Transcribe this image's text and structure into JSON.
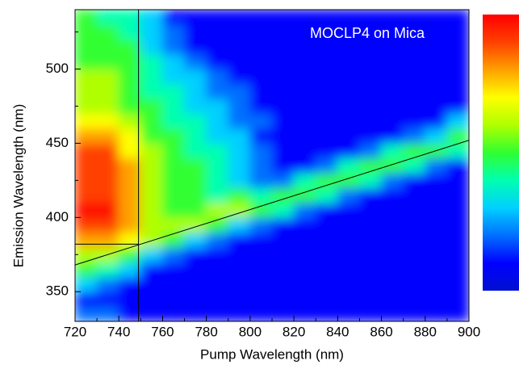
{
  "chart_data": {
    "type": "heatmap",
    "title": "MOCLP4 on Mica",
    "x_label": "Pump Wavelength (nm)",
    "y_label": "Emission Wavelength (nm)",
    "xlim": [
      720,
      900
    ],
    "ylim": [
      330,
      540
    ],
    "xticks": [
      720,
      740,
      760,
      780,
      800,
      820,
      840,
      860,
      880,
      900
    ],
    "yticks": [
      350,
      400,
      450,
      500
    ],
    "xminorticks": [
      730,
      750,
      770,
      790,
      810,
      830,
      850,
      870,
      890
    ],
    "yminorticks": [
      375,
      425,
      475,
      525
    ],
    "x": [
      725,
      735,
      745,
      755,
      765,
      775,
      785,
      795,
      805,
      815,
      825,
      835,
      845,
      855,
      865,
      875,
      885,
      895
    ],
    "y": [
      335,
      345,
      355,
      365,
      375,
      385,
      395,
      405,
      415,
      425,
      435,
      445,
      455,
      465,
      475,
      485,
      495,
      505,
      515,
      525,
      535
    ],
    "z": [
      [
        2,
        1,
        3,
        5,
        6,
        8,
        9,
        10,
        9,
        9,
        9,
        9,
        8,
        7,
        6,
        6,
        6,
        5,
        5,
        5,
        5
      ],
      [
        2,
        1,
        2,
        4,
        6,
        8,
        9,
        10,
        9,
        9,
        9,
        9,
        8,
        7,
        6,
        6,
        6,
        5,
        5,
        5,
        4
      ],
      [
        1,
        1,
        1,
        3,
        5,
        7,
        8,
        8,
        8,
        8,
        8,
        7,
        7,
        6,
        5,
        5,
        5,
        5,
        5,
        4,
        4
      ],
      [
        1,
        1,
        1,
        1,
        3,
        6,
        6,
        6,
        6,
        6,
        6,
        6,
        5,
        5,
        5,
        4,
        4,
        4,
        3,
        3,
        3
      ],
      [
        1,
        1,
        1,
        1,
        2,
        5,
        6,
        5,
        5,
        5,
        5,
        5,
        5,
        4,
        4,
        4,
        3,
        3,
        2,
        2,
        1
      ],
      [
        1,
        1,
        1,
        1,
        1,
        3,
        6,
        5,
        5,
        5,
        5,
        4,
        4,
        4,
        3,
        3,
        3,
        2,
        1,
        1,
        1
      ],
      [
        1,
        1,
        1,
        1,
        1,
        2,
        5,
        6,
        4,
        4,
        4,
        4,
        3,
        3,
        3,
        2,
        2,
        1,
        1,
        1,
        1
      ],
      [
        1,
        1,
        1,
        1,
        1,
        1,
        3,
        6,
        5,
        3,
        3,
        3,
        3,
        2,
        2,
        2,
        1,
        1,
        1,
        1,
        1
      ],
      [
        1,
        1,
        1,
        1,
        1,
        1,
        2,
        5,
        4,
        2,
        2,
        2,
        1,
        2,
        1,
        1,
        1,
        1,
        1,
        1,
        1
      ],
      [
        1,
        1,
        1,
        1,
        1,
        1,
        1,
        4,
        5,
        2,
        1,
        1,
        1,
        1,
        1,
        1,
        1,
        1,
        1,
        1,
        1
      ],
      [
        1,
        1,
        1,
        1,
        1,
        1,
        1,
        2,
        5,
        4,
        1,
        1,
        1,
        1,
        1,
        1,
        1,
        1,
        1,
        1,
        1
      ],
      [
        1,
        1,
        1,
        1,
        1,
        1,
        1,
        1,
        4,
        5,
        2,
        1,
        1,
        1,
        1,
        1,
        1,
        1,
        1,
        1,
        1
      ],
      [
        1,
        1,
        1,
        1,
        1,
        1,
        1,
        1,
        2,
        5,
        4,
        1,
        1,
        1,
        1,
        1,
        1,
        1,
        1,
        1,
        1
      ],
      [
        1,
        1,
        1,
        1,
        1,
        1,
        1,
        1,
        1,
        4,
        5,
        2,
        1,
        1,
        1,
        1,
        1,
        1,
        1,
        1,
        1
      ],
      [
        1,
        1,
        1,
        1,
        1,
        1,
        1,
        1,
        1,
        2,
        5,
        4,
        1,
        1,
        1,
        1,
        1,
        1,
        1,
        1,
        1
      ],
      [
        1,
        1,
        1,
        1,
        1,
        1,
        1,
        1,
        1,
        1,
        4,
        5,
        2,
        1,
        1,
        1,
        1,
        1,
        1,
        1,
        1
      ],
      [
        1,
        1,
        1,
        1,
        1,
        1,
        1,
        1,
        1,
        1,
        2,
        5,
        3,
        1,
        1,
        1,
        1,
        1,
        1,
        1,
        1
      ],
      [
        1,
        1,
        1,
        1,
        1,
        1,
        1,
        1,
        1,
        1,
        1,
        4,
        5,
        3,
        1,
        1,
        1,
        1,
        1,
        1,
        1
      ]
    ],
    "colormap": [
      "#0010d0",
      "#0000ff",
      "#0070ff",
      "#00d0ff",
      "#00ffb0",
      "#30ff30",
      "#b0ff00",
      "#ffff00",
      "#ffa000",
      "#ff4000",
      "#ff0000"
    ],
    "lines": [
      {
        "x": [
          720,
          900
        ],
        "y": [
          368,
          452
        ]
      },
      {
        "x": [
          749,
          749
        ],
        "y": [
          330,
          540
        ]
      },
      {
        "x": [
          720,
          749
        ],
        "y": [
          382,
          382
        ]
      }
    ],
    "line_color": "#000000"
  }
}
